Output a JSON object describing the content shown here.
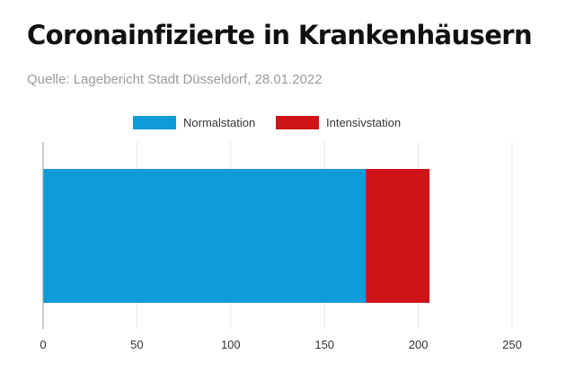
{
  "title": "Coronainfizierte in Krankenhäusern",
  "subtitle": "Quelle: Lagebericht Stadt Düsseldorf, 28.01.2022",
  "legend": [
    {
      "label": "Normalstation",
      "color": "#0f9ad8"
    },
    {
      "label": "Intensivstation",
      "color": "#cc1419"
    }
  ],
  "chart_data": {
    "type": "bar",
    "orientation": "horizontal",
    "stacked": true,
    "categories": [
      ""
    ],
    "series": [
      {
        "name": "Normalstation",
        "values": [
          172
        ],
        "color": "#0f9ad8"
      },
      {
        "name": "Intensivstation",
        "values": [
          34
        ],
        "color": "#cc1419"
      }
    ],
    "xlim": [
      0,
      250
    ],
    "xticks": [
      "0",
      "50",
      "100",
      "150",
      "200",
      "250"
    ],
    "grid": true,
    "legend_position": "top"
  }
}
